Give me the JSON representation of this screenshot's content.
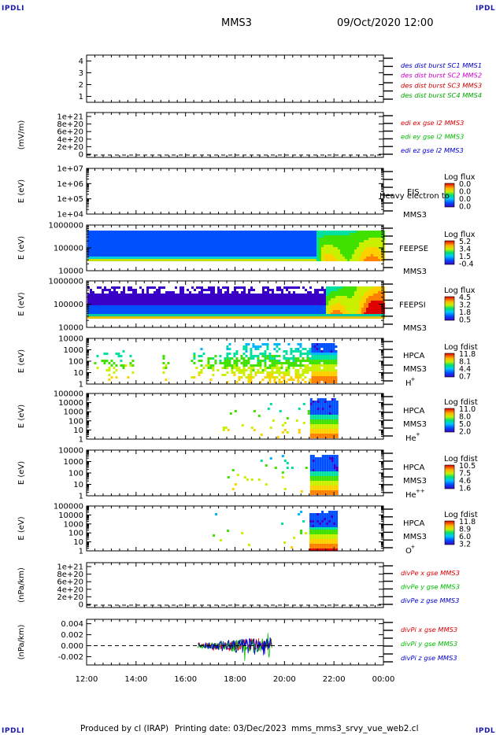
{
  "header": {
    "corner_label": "IPDLI",
    "spacecraft": "MMS3",
    "datetime": "09/Oct/2020 12:00"
  },
  "footer": {
    "produced_by": "Produced by cl (IRAP)",
    "printing_date": "Printing date: 03/Dec/2023",
    "file": "mms_mms3_srvy_vue_web2.cl"
  },
  "colors": {
    "mms1": "#0000cc",
    "mms2": "#cc00cc",
    "mms3": "#cc0000",
    "mms4": "#00aa00",
    "x_comp": "#dd0000",
    "y_comp": "#00bb00",
    "z_comp": "#0000cc"
  },
  "chart_data": [
    {
      "type": "line",
      "id": "burst",
      "yticks": [
        "1",
        "2",
        "3",
        "4"
      ],
      "ylim": [
        0.5,
        4.5
      ],
      "legend": [
        {
          "label": "des dist burst SC1 MMS1",
          "color": "#0000cc"
        },
        {
          "label": "des dist burst SC2 MMS2",
          "color": "#cc00cc"
        },
        {
          "label": "des dist burst SC3 MMS3",
          "color": "#cc0000"
        },
        {
          "label": "des dist burst SC4 MMS4",
          "color": "#00aa00"
        }
      ]
    },
    {
      "type": "line",
      "id": "edi",
      "ylabel": "(mV/m)",
      "yticks": [
        "1e+21",
        "8e+20",
        "6e+20",
        "4e+20",
        "2e+20",
        "0"
      ],
      "zero_line": true,
      "legend": [
        {
          "label": "edi ex gse l2 MMS3",
          "color": "#dd0000"
        },
        {
          "label": "edi ey gse l2 MMS3",
          "color": "#00bb00"
        },
        {
          "label": "edi ez gse l2 MMS3",
          "color": "#0000cc"
        }
      ]
    },
    {
      "type": "heatmap",
      "id": "eis",
      "ylabel": "E (eV)",
      "yticks": [
        "1e+07",
        "1e+06",
        "1e+05",
        "1e+04"
      ],
      "instrument": [
        "EIS",
        "MMS3"
      ],
      "overlay_text": "Heavy electron to",
      "colorbar": {
        "title": "Log flux",
        "labels": [
          "0.0",
          "0.0",
          "0.0",
          "0.0"
        ]
      }
    },
    {
      "type": "heatmap",
      "id": "feepse",
      "ylabel": "E (eV)",
      "yticks": [
        "1000000",
        "100000",
        "10000"
      ],
      "instrument": [
        "FEEPSE",
        "MMS3"
      ],
      "colorbar": {
        "title": "Log flux",
        "labels": [
          "5.2",
          "3.4",
          "1.5",
          "-0.4"
        ]
      }
    },
    {
      "type": "heatmap",
      "id": "feepsi",
      "ylabel": "E (eV)",
      "yticks": [
        "1000000",
        "100000",
        "10000"
      ],
      "instrument": [
        "FEEPSI",
        "MMS3"
      ],
      "colorbar": {
        "title": "Log flux",
        "labels": [
          "4.5",
          "3.2",
          "1.8",
          "0.5"
        ]
      }
    },
    {
      "type": "heatmap",
      "id": "hpca_h",
      "ylabel": "E (eV)",
      "yticks": [
        "10000",
        "1000",
        "100",
        "10",
        "1"
      ],
      "instrument": [
        "HPCA",
        "MMS3",
        "H",
        "+"
      ],
      "colorbar": {
        "title": "Log fdist",
        "labels": [
          "11.8",
          "8.1",
          "4.4",
          "0.7"
        ]
      }
    },
    {
      "type": "heatmap",
      "id": "hpca_he",
      "ylabel": "E (eV)",
      "yticks": [
        "100000",
        "10000",
        "1000",
        "100",
        "10",
        "1"
      ],
      "instrument": [
        "HPCA",
        "MMS3",
        "He",
        "+"
      ],
      "colorbar": {
        "title": "Log fdist",
        "labels": [
          "11.0",
          "8.0",
          "5.0",
          "2.0"
        ]
      }
    },
    {
      "type": "heatmap",
      "id": "hpca_hepp",
      "ylabel": "E (eV)",
      "yticks": [
        "10000",
        "1000",
        "100",
        "10",
        "1"
      ],
      "instrument": [
        "HPCA",
        "MMS3",
        "He",
        "++"
      ],
      "colorbar": {
        "title": "Log fdist",
        "labels": [
          "10.5",
          "7.5",
          "4.6",
          "1.6"
        ]
      }
    },
    {
      "type": "heatmap",
      "id": "hpca_o",
      "ylabel": "E (eV)",
      "yticks": [
        "100000",
        "10000",
        "1000",
        "100",
        "10",
        "1"
      ],
      "instrument": [
        "HPCA",
        "MMS3",
        "O",
        "+"
      ],
      "colorbar": {
        "title": "Log fdist",
        "labels": [
          "11.8",
          "8.9",
          "6.0",
          "3.2"
        ]
      }
    },
    {
      "type": "line",
      "id": "divpe",
      "ylabel": "(nPa/km)",
      "yticks": [
        "1e+21",
        "8e+20",
        "6e+20",
        "4e+20",
        "2e+20",
        "0"
      ],
      "zero_line": true,
      "legend": [
        {
          "label": "divPe x gse MMS3",
          "color": "#dd0000"
        },
        {
          "label": "divPe y gse MMS3",
          "color": "#00bb00"
        },
        {
          "label": "divPe z gse MMS3",
          "color": "#0000cc"
        }
      ]
    },
    {
      "type": "line",
      "id": "divpi",
      "ylabel": "(nPa/km)",
      "yticks": [
        "0.004",
        "0.002",
        "0.000",
        "-0.002"
      ],
      "ylim": [
        -0.0035,
        0.0048
      ],
      "zero_line": true,
      "data_span_hours": [
        16.5,
        19.5
      ],
      "legend": [
        {
          "label": "divPi x gse MMS3",
          "color": "#dd0000"
        },
        {
          "label": "divPi y gse MMS3",
          "color": "#00bb00"
        },
        {
          "label": "divPi z gse MMS3",
          "color": "#0000cc"
        }
      ]
    }
  ],
  "xaxis": {
    "ticks": [
      "12:00",
      "14:00",
      "16:00",
      "18:00",
      "20:00",
      "22:00",
      "00:00"
    ],
    "range_hours": [
      12,
      24
    ]
  }
}
